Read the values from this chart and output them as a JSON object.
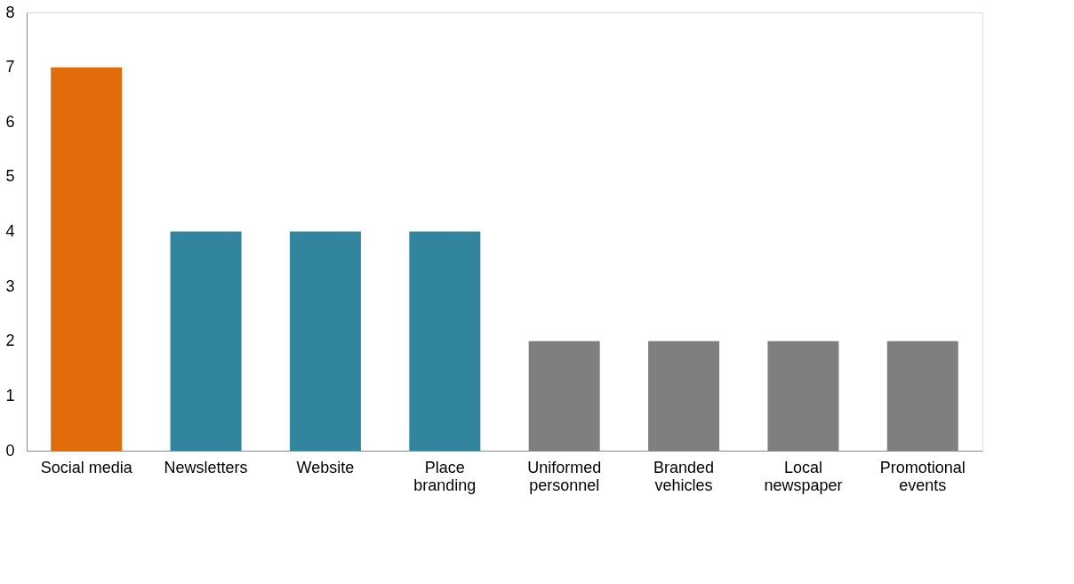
{
  "chart_data": {
    "type": "bar",
    "categories": [
      "Social media",
      "Newsletters",
      "Website",
      "Place branding",
      "Uniformed personnel",
      "Branded vehicles",
      "Local newspaper",
      "Promotional events"
    ],
    "values": [
      7,
      4,
      4,
      4,
      2,
      2,
      2,
      2
    ],
    "colors": [
      "#e36c0a",
      "#31859c",
      "#31859c",
      "#31859c",
      "#7f7f7f",
      "#7f7f7f",
      "#7f7f7f",
      "#7f7f7f"
    ],
    "ylim": [
      0,
      8
    ],
    "yticks": [
      0,
      1,
      2,
      3,
      4,
      5,
      6,
      7,
      8
    ],
    "grid": false
  }
}
